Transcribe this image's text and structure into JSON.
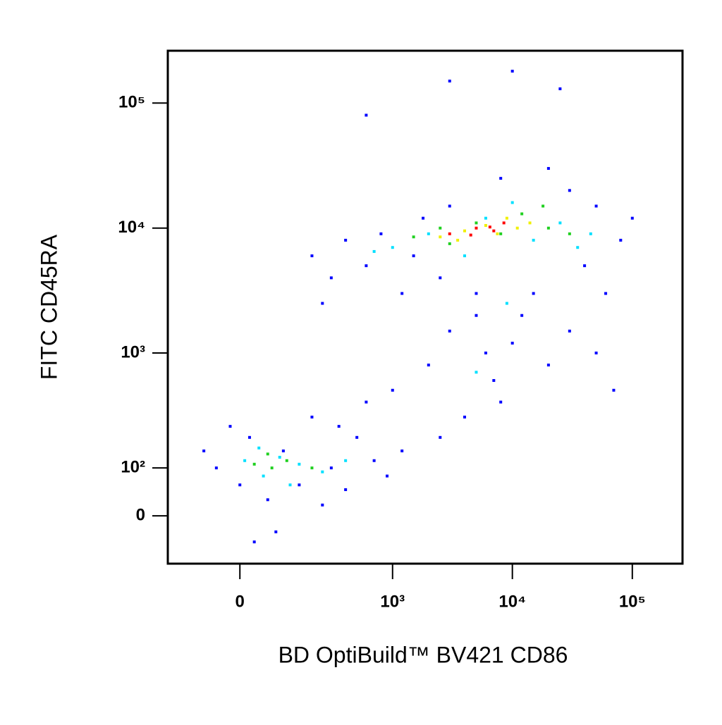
{
  "chart_data": {
    "type": "scatter",
    "xlabel": "BD OptiBuild™ BV421 CD86",
    "ylabel": "FITC CD45RA",
    "xscale": "biexponential",
    "yscale": "biexponential",
    "xlim": [
      -200,
      262144
    ],
    "ylim": [
      -100,
      262144
    ],
    "xticks": [
      0,
      {
        "value": 1000,
        "label": "10³"
      },
      {
        "value": 10000,
        "label": "10⁴"
      },
      {
        "value": 100000,
        "label": "10⁵"
      }
    ],
    "yticks": [
      0,
      {
        "value": 100,
        "label": "10²"
      },
      {
        "value": 1000,
        "label": "10³"
      },
      {
        "value": 10000,
        "label": "10⁴"
      },
      {
        "value": 100000,
        "label": "10⁵"
      }
    ],
    "series": [
      {
        "color": "#0000ff",
        "x": [
          200,
          400,
          600,
          300,
          800,
          1500,
          2500,
          5000,
          40000,
          60000,
          80000,
          100000,
          30000,
          8000,
          3000,
          1200,
          250,
          20000,
          50000,
          1800,
          1000,
          2000,
          3000,
          5000,
          7000,
          10000,
          15000,
          20000,
          30000,
          8000,
          4000,
          2500,
          12000,
          50000,
          70000,
          6000,
          -50,
          0,
          20,
          60,
          100,
          150,
          200,
          300,
          400,
          500,
          700,
          900,
          -80,
          30,
          80,
          250,
          1200,
          600,
          350,
          -20,
          3000,
          10000,
          600,
          25000
        ],
        "y": [
          6000,
          8000,
          5000,
          4000,
          9000,
          6000,
          4000,
          3000,
          5000,
          3000,
          8000,
          12000,
          20000,
          25000,
          15000,
          3000,
          2500,
          30000,
          15000,
          12000,
          500,
          800,
          1500,
          2000,
          600,
          1200,
          3000,
          800,
          1500,
          400,
          300,
          200,
          2000,
          1000,
          500,
          1000,
          100,
          60,
          200,
          30,
          150,
          60,
          300,
          100,
          50,
          200,
          120,
          80,
          150,
          -50,
          -30,
          20,
          150,
          400,
          250,
          250,
          150000,
          180000,
          80000,
          130000
        ]
      },
      {
        "color": "#00e0ff",
        "x": [
          1000,
          2000,
          4000,
          6000,
          15000,
          25000,
          35000,
          10000,
          700,
          45000,
          10,
          50,
          90,
          150,
          250,
          40,
          120,
          400,
          9000,
          5000
        ],
        "y": [
          7000,
          9000,
          6000,
          12000,
          8000,
          11000,
          7000,
          16000,
          6500,
          9000,
          120,
          80,
          130,
          110,
          90,
          160,
          60,
          120,
          2500,
          700
        ]
      },
      {
        "color": "#20d020",
        "x": [
          1500,
          3000,
          5000,
          8000,
          12000,
          20000,
          30000,
          2500,
          18000,
          30,
          70,
          110,
          200,
          60
        ],
        "y": [
          8500,
          7500,
          11000,
          9000,
          13000,
          10000,
          9000,
          10000,
          15000,
          110,
          100,
          120,
          100,
          140
        ]
      },
      {
        "color": "#f0f000",
        "x": [
          2500,
          4000,
          6000,
          9000,
          14000,
          3500,
          7500,
          11000
        ],
        "y": [
          8500,
          9500,
          10500,
          12000,
          11000,
          8000,
          9000,
          10000
        ]
      },
      {
        "color": "#ff0000",
        "x": [
          3000,
          5000,
          7000,
          8500,
          4500,
          6500
        ],
        "y": [
          9000,
          10000,
          9500,
          11000,
          8800,
          10200
        ]
      }
    ]
  }
}
